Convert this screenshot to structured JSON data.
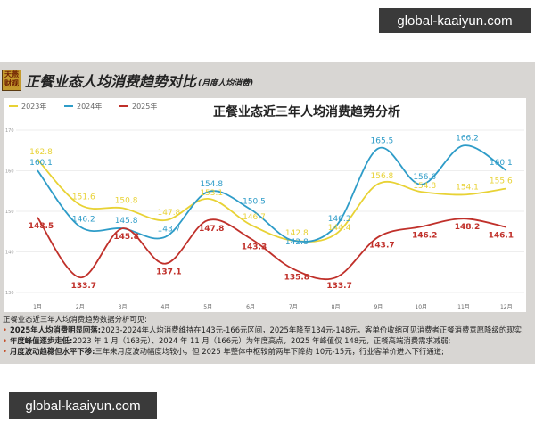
{
  "watermark": "global-kaaiyun.com",
  "header": {
    "logo": "天燕财观",
    "title": "正餐业态人均消费趋势对比",
    "subtitle": "(月度人均消费)"
  },
  "chart_data": {
    "type": "line",
    "title": "正餐业态近三年人均消费趋势分析",
    "categories": [
      "1月",
      "2月",
      "3月",
      "4月",
      "5月",
      "6月",
      "7月",
      "8月",
      "9月",
      "10月",
      "11月",
      "12月"
    ],
    "ylim": [
      130,
      170
    ],
    "yticks": [
      130,
      140,
      150,
      160,
      170
    ],
    "grid": true,
    "legend": "top-left",
    "series": [
      {
        "name": "2023年",
        "color": "#e8d235",
        "values": [
          162.8,
          151.6,
          150.8,
          147.8,
          153.1,
          146.7,
          142.8,
          144.4,
          156.8,
          154.8,
          154.1,
          155.6
        ]
      },
      {
        "name": "2024年",
        "color": "#2e9cc8",
        "values": [
          160.1,
          146.2,
          145.8,
          143.7,
          154.8,
          150.5,
          142.8,
          146.3,
          165.5,
          156.6,
          166.2,
          160.1
        ]
      },
      {
        "name": "2025年",
        "color": "#c0302a",
        "values": [
          148.5,
          133.7,
          145.8,
          137.1,
          147.8,
          143.3,
          135.8,
          133.7,
          143.7,
          146.2,
          148.2,
          146.1
        ]
      }
    ]
  },
  "notes": {
    "intro": "正餐业态近三年人均消费趋势数据分析可见:",
    "items": [
      {
        "head": "2025年人均消费明显回落:",
        "text": "2023-2024年人均消费维持在143元-166元区间，2025年降至134元-148元，客单价收缩可见消费者正餐消费意愿降级的现实;"
      },
      {
        "head": "年度峰值逐步走低:",
        "text": "2023 年 1 月（163元）、2024 年 11 月（166元）为年度高点，2025 年峰值仅 148元，正餐高端消费需求减弱;"
      },
      {
        "head": "月度波动趋稳但水平下移:",
        "text": "三年来月度波动幅度均较小，但 2025 年整体中枢较前两年下降约 10元-15元，行业客单价进入下行通道;"
      }
    ]
  }
}
